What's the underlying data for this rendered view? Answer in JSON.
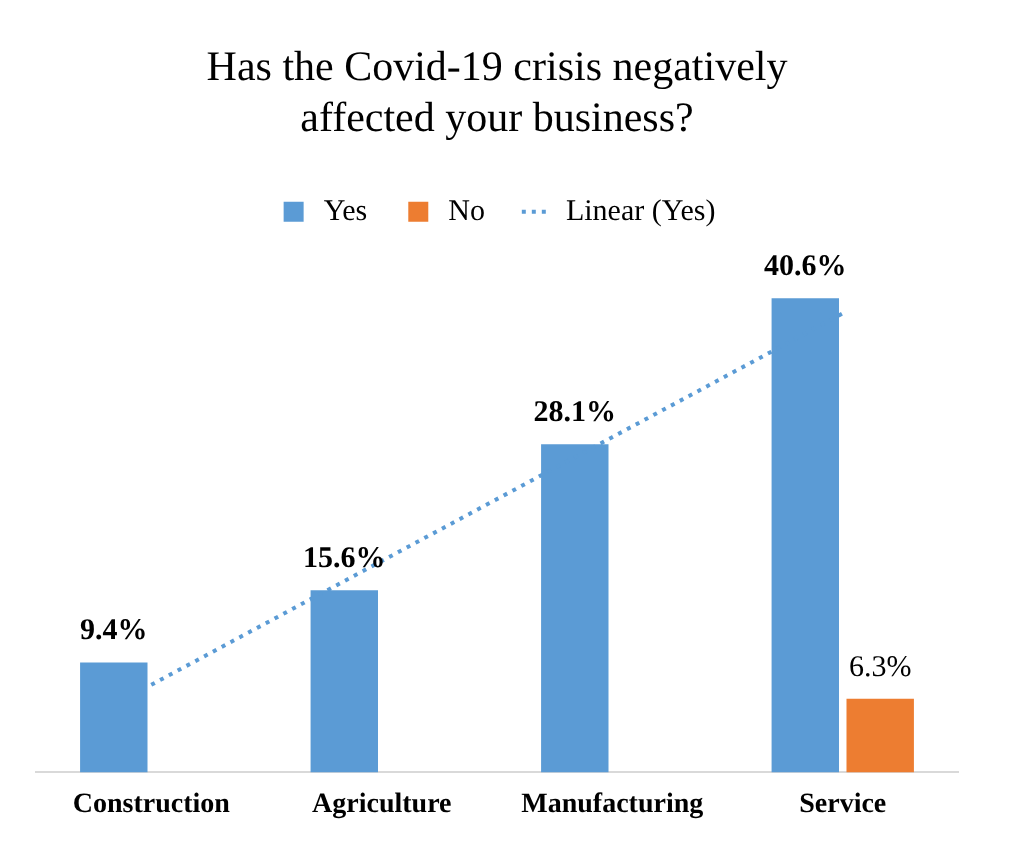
{
  "chart_data": {
    "type": "bar",
    "title": "Has the Covid-19 crisis negatively affected your business?",
    "categories": [
      "Construction",
      "Agriculture",
      "Manufacturing",
      "Service"
    ],
    "series": [
      {
        "name": "Yes",
        "color": "#5b9bd5",
        "values": [
          9.4,
          15.6,
          28.1,
          40.6
        ],
        "value_labels": [
          "9.4%",
          "15.6%",
          "28.1%",
          "40.6%"
        ]
      },
      {
        "name": "No",
        "color": "#ed7d31",
        "values": [
          null,
          null,
          null,
          6.3
        ],
        "value_labels": [
          null,
          null,
          null,
          "6.3%"
        ]
      },
      {
        "name": "Linear (Yes)",
        "type": "line",
        "color": "#5b9bd5",
        "line_style": "dotted",
        "marker": "none",
        "x": [
          "Construction",
          "Agriculture",
          "Manufacturing",
          "Service"
        ],
        "values": [
          7.5,
          18.1,
          28.7,
          39.3
        ]
      }
    ],
    "legend": "top",
    "grid": false,
    "tick_labels": "x"
  }
}
